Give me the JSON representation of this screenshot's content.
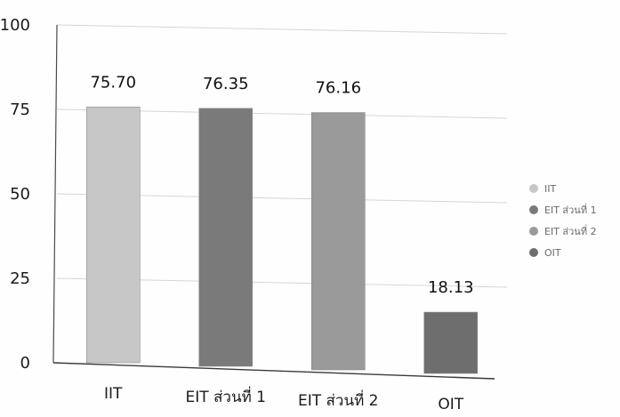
{
  "chart_data": {
    "type": "bar",
    "title": "",
    "xlabel": "",
    "ylabel": "",
    "categories": [
      "IIT",
      "EIT ส่วนที่ 1",
      "EIT ส่วนที่ 2",
      "OIT"
    ],
    "values": [
      75.7,
      76.35,
      76.16,
      18.13
    ],
    "data_labels": [
      "75.70",
      "76.35",
      "76.16",
      "18.13"
    ],
    "ylim": [
      0,
      100
    ],
    "yticks": [
      0,
      25,
      50,
      75,
      100
    ],
    "grid": true,
    "legend": {
      "placement": "right",
      "entries": [
        "IIT",
        "EIT ส่วนที่ 1",
        "EIT ส่วนที่ 2",
        "OIT"
      ]
    },
    "colors": [
      "#c7c7c7",
      "#7a7a7a",
      "#9a9a9a",
      "#6e6e6e"
    ]
  }
}
